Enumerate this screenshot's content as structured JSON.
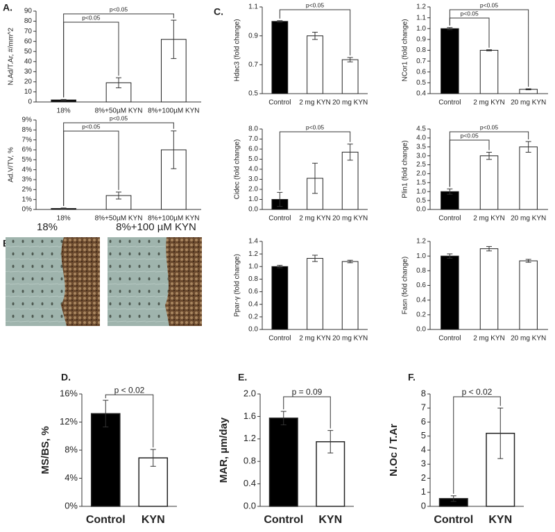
{
  "panel_labels": {
    "a": "A.",
    "b": "B.",
    "c": "C.",
    "d": "D.",
    "e": "E.",
    "f": "F."
  },
  "image_panel": {
    "captions": [
      "18%",
      "8%+100 µM KYN"
    ]
  },
  "chart_data": [
    {
      "type": "bar",
      "y_label": "N.Ad/T.Ar, #/mm^2",
      "categories": [
        "18%",
        "8%+50µM KYN",
        "8%+100µM KYN"
      ],
      "values": [
        2,
        19,
        62
      ],
      "errors": [
        0.5,
        5,
        19
      ],
      "colors": [
        "#000000",
        "#ffffff",
        "#ffffff"
      ],
      "ylim": [
        0,
        90
      ],
      "yticks": [
        0,
        10,
        20,
        30,
        40,
        50,
        60,
        70,
        80,
        90
      ],
      "annotations": [
        {
          "text": "p<0.05",
          "from": 0,
          "to": 2
        },
        {
          "text": "p<0.05",
          "from": 0,
          "to": 1
        }
      ]
    },
    {
      "type": "bar",
      "y_label": "Ad.V/TV, %",
      "categories": [
        "18%",
        "8%+50µM KYN",
        "8%+100µM KYN"
      ],
      "values": [
        0.1,
        1.4,
        6.0
      ],
      "errors": [
        0.05,
        0.35,
        1.9
      ],
      "colors": [
        "#000000",
        "#ffffff",
        "#ffffff"
      ],
      "ylim": [
        0,
        9
      ],
      "yticks": [
        {
          "value": 0,
          "label": "0%"
        },
        {
          "value": 1,
          "label": "1%"
        },
        {
          "value": 2,
          "label": "2%"
        },
        {
          "value": 3,
          "label": "3%"
        },
        {
          "value": 4,
          "label": "4%"
        },
        {
          "value": 5,
          "label": "5%"
        },
        {
          "value": 6,
          "label": "6%"
        },
        {
          "value": 7,
          "label": "7%"
        },
        {
          "value": 8,
          "label": "8%"
        },
        {
          "value": 9,
          "label": "9%"
        }
      ],
      "annotations": [
        {
          "text": "p<0.05",
          "from": 0,
          "to": 2
        },
        {
          "text": "p<0.05",
          "from": 0,
          "to": 1
        }
      ]
    },
    {
      "type": "bar",
      "y_label": "Hdac3 (fold change)",
      "categories": [
        "Control",
        "2 mg KYN",
        "20 mg KYN"
      ],
      "values": [
        1.0,
        0.9,
        0.735
      ],
      "errors": [
        0.005,
        0.025,
        0.015
      ],
      "colors": [
        "#000000",
        "#ffffff",
        "#ffffff"
      ],
      "ylim": [
        0.5,
        1.1
      ],
      "yticks": [
        0.5,
        0.7,
        0.9,
        1.1
      ],
      "annotations": [
        {
          "text": "p<0.05",
          "from": 0,
          "to": 2
        }
      ]
    },
    {
      "type": "bar",
      "y_label": "NCor1 (fold change)",
      "categories": [
        "Control",
        "2 mg KYN",
        "20 mg KYN"
      ],
      "values": [
        1.0,
        0.8,
        0.44
      ],
      "errors": [
        0.01,
        0.005,
        0.005
      ],
      "colors": [
        "#000000",
        "#ffffff",
        "#ffffff"
      ],
      "ylim": [
        0.4,
        1.2
      ],
      "yticks": [
        0.4,
        0.5,
        0.6,
        0.7,
        0.8,
        0.9,
        {
          "value": 1,
          "label": "1.0"
        },
        1.1,
        1.2
      ],
      "annotations": [
        {
          "text": "p<0.05",
          "from": 0,
          "to": 2
        },
        {
          "text": "p<0.05",
          "from": 0,
          "to": 1
        }
      ]
    },
    {
      "type": "bar",
      "y_label": "Cidec (fold change)",
      "categories": [
        "Control",
        "2 mg KYN",
        "20 mg KYN"
      ],
      "values": [
        1.0,
        3.1,
        5.7
      ],
      "errors": [
        0.7,
        1.5,
        0.8
      ],
      "colors": [
        "#000000",
        "#ffffff",
        "#ffffff"
      ],
      "ylim": [
        0,
        8
      ],
      "yticks": [
        {
          "value": 0,
          "label": "0.0"
        },
        {
          "value": 1,
          "label": "1.0"
        },
        {
          "value": 2,
          "label": "2.0"
        },
        {
          "value": 3,
          "label": "3.0"
        },
        {
          "value": 4,
          "label": "4.0"
        },
        {
          "value": 5,
          "label": "5.0"
        },
        {
          "value": 6,
          "label": "6.0"
        },
        {
          "value": 7,
          "label": "7.0"
        },
        {
          "value": 8,
          "label": "8.0"
        }
      ],
      "annotations": [
        {
          "text": "p<0.05",
          "from": 0,
          "to": 2
        }
      ]
    },
    {
      "type": "bar",
      "y_label": "Plin1 (fold change)",
      "categories": [
        "Control",
        "2 mg KYN",
        "20 mg KYN"
      ],
      "values": [
        1.0,
        3.0,
        3.5
      ],
      "errors": [
        0.15,
        0.2,
        0.3
      ],
      "colors": [
        "#000000",
        "#ffffff",
        "#ffffff"
      ],
      "ylim": [
        0,
        4.5
      ],
      "yticks": [
        {
          "value": 0,
          "label": "0.0"
        },
        0.5,
        {
          "value": 1,
          "label": "1.0"
        },
        1.5,
        {
          "value": 2,
          "label": "2.0"
        },
        2.5,
        {
          "value": 3,
          "label": "3.0"
        },
        3.5,
        {
          "value": 4,
          "label": "4.0"
        },
        4.5
      ],
      "annotations": [
        {
          "text": "p<0.05",
          "from": 0,
          "to": 2
        },
        {
          "text": "p<0.05",
          "from": 0,
          "to": 1
        }
      ]
    },
    {
      "type": "bar",
      "y_label": "Ppar-γ (fold change)",
      "categories": [
        "Control",
        "2 mg KYN",
        "20 mg KYN"
      ],
      "values": [
        1.0,
        1.13,
        1.08
      ],
      "errors": [
        0.02,
        0.05,
        0.02
      ],
      "colors": [
        "#000000",
        "#ffffff",
        "#ffffff"
      ],
      "ylim": [
        0,
        1.4
      ],
      "yticks": [
        {
          "value": 0,
          "label": "0.0"
        },
        0.2,
        0.4,
        0.6,
        0.8,
        {
          "value": 1,
          "label": "1.0"
        },
        1.2,
        1.4
      ],
      "annotations": []
    },
    {
      "type": "bar",
      "y_label": "Fasn (fold change)",
      "categories": [
        "Control",
        "2 mg KYN",
        "20 mg KYN"
      ],
      "values": [
        1.0,
        1.1,
        0.935
      ],
      "errors": [
        0.03,
        0.03,
        0.02
      ],
      "colors": [
        "#000000",
        "#ffffff",
        "#ffffff"
      ],
      "ylim": [
        0,
        1.2
      ],
      "yticks": [
        {
          "value": 0,
          "label": "0.0"
        },
        0.2,
        0.4,
        0.6,
        0.8,
        {
          "value": 1,
          "label": "1.0"
        },
        1.2
      ],
      "annotations": []
    },
    {
      "type": "bar",
      "y_label": "MS/BS, %",
      "categories": [
        "Control",
        "KYN"
      ],
      "values": [
        13.2,
        6.9
      ],
      "errors": [
        1.9,
        1.2
      ],
      "colors": [
        "#000000",
        "#ffffff"
      ],
      "ylim": [
        0,
        16
      ],
      "yticks": [
        {
          "value": 0,
          "label": "0%"
        },
        {
          "value": 4,
          "label": "4%"
        },
        {
          "value": 8,
          "label": "8%"
        },
        {
          "value": 12,
          "label": "12%"
        },
        {
          "value": 16,
          "label": "16%"
        }
      ],
      "annotations": [
        {
          "text": "p < 0.02",
          "from": 0,
          "to": 1
        }
      ]
    },
    {
      "type": "bar",
      "y_label": "MAR, µm/day",
      "categories": [
        "Control",
        "KYN"
      ],
      "values": [
        1.57,
        1.15
      ],
      "errors": [
        0.12,
        0.2
      ],
      "colors": [
        "#000000",
        "#ffffff"
      ],
      "ylim": [
        0,
        2
      ],
      "yticks": [
        {
          "value": 0,
          "label": "0.0"
        },
        0.4,
        0.8,
        1.2,
        1.6,
        {
          "value": 2,
          "label": "2.0"
        }
      ],
      "annotations": [
        {
          "text": "p = 0.09",
          "from": 0,
          "to": 1
        }
      ]
    },
    {
      "type": "bar",
      "y_label": "N.Oc / T.Ar",
      "categories": [
        "Control",
        "KYN"
      ],
      "values": [
        0.55,
        5.2
      ],
      "errors": [
        0.2,
        1.8
      ],
      "colors": [
        "#000000",
        "#ffffff"
      ],
      "ylim": [
        0,
        8
      ],
      "yticks": [
        0,
        1,
        2,
        3,
        4,
        5,
        6,
        7,
        8
      ],
      "annotations": [
        {
          "text": "p < 0.02",
          "from": 0,
          "to": 1
        }
      ]
    }
  ]
}
